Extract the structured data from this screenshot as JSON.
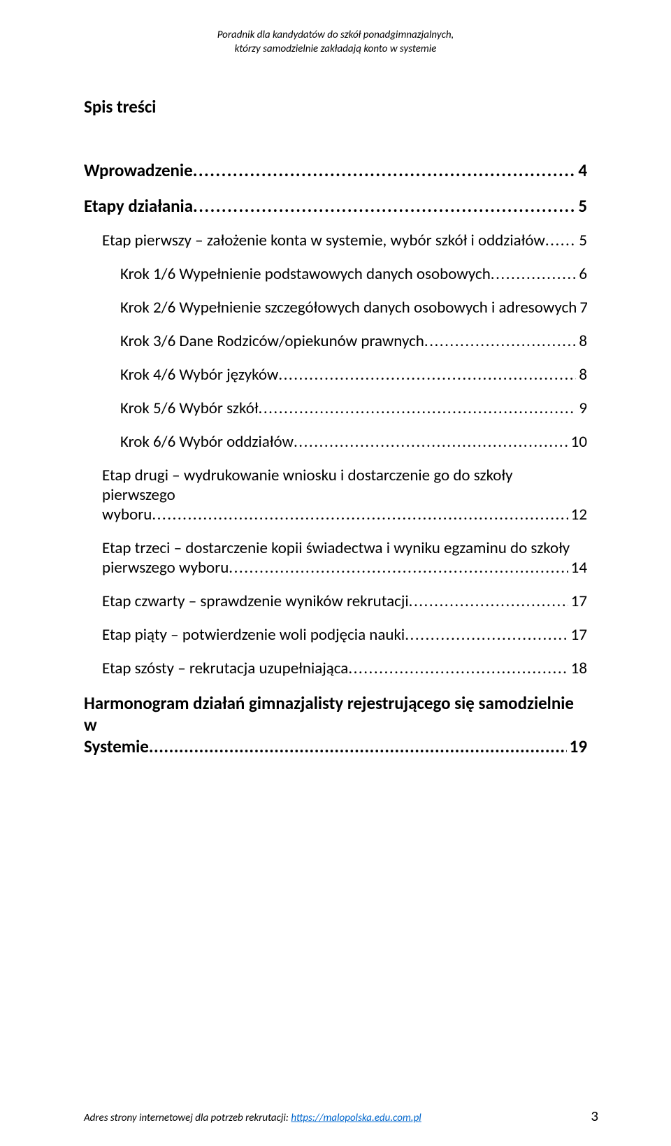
{
  "header": {
    "line1": "Poradnik dla kandydatów do szkół ponadgimnazjalnych,",
    "line2": "którzy samodzielnie zakładają konto w systemie"
  },
  "section_title": "Spis treści",
  "toc": [
    {
      "level": 0,
      "text": "Wprowadzenie",
      "page": "4"
    },
    {
      "level": 0,
      "text": "Etapy działania",
      "page": "5"
    },
    {
      "level": 1,
      "text": "Etap pierwszy – założenie konta w systemie, wybór szkół i oddziałów",
      "page": "5"
    },
    {
      "level": 2,
      "text": "Krok 1/6 Wypełnienie podstawowych danych osobowych",
      "page": "6"
    },
    {
      "level": 2,
      "text": "Krok 2/6 Wypełnienie  szczegółowych danych osobowych i adresowych",
      "page": "7"
    },
    {
      "level": 2,
      "text": "Krok 3/6 Dane Rodziców/opiekunów prawnych",
      "page": "8"
    },
    {
      "level": 2,
      "text": "Krok 4/6 Wybór języków",
      "page": "8"
    },
    {
      "level": 2,
      "text": "Krok 5/6 Wybór szkół",
      "page": "9"
    },
    {
      "level": 2,
      "text": "Krok 6/6 Wybór oddziałów",
      "page": "10"
    },
    {
      "level": 1,
      "multiline": true,
      "text_first": "Etap drugi – wydrukowanie wniosku i dostarczenie go do szkoły pierwszego",
      "text_last": "wyboru",
      "page": "12"
    },
    {
      "level": 1,
      "multiline": true,
      "text_first": "Etap trzeci – dostarczenie kopii świadectwa i wyniku egzaminu do szkoły",
      "text_last": "pierwszego wyboru",
      "page": "14"
    },
    {
      "level": 1,
      "text": "Etap czwarty – sprawdzenie wyników rekrutacji",
      "page": "17"
    },
    {
      "level": 1,
      "text": "Etap piąty – potwierdzenie woli podjęcia nauki",
      "page": "17"
    },
    {
      "level": 1,
      "text": "Etap szósty – rekrutacja uzupełniająca",
      "page": "18"
    },
    {
      "level": 0,
      "multiline": true,
      "text_first": "Harmonogram działań gimnazjalisty  rejestrującego się samodzielnie w",
      "text_last": "Systemie",
      "page": "19",
      "tight": true
    }
  ],
  "footer": {
    "label": "Adres strony internetowej dla potrzeb rekrutacji:  ",
    "link_text": "https://malopolska.edu.com.pl",
    "page_number": "3"
  },
  "colors": {
    "text": "#000000",
    "link": "#0066cc",
    "background": "#ffffff"
  }
}
